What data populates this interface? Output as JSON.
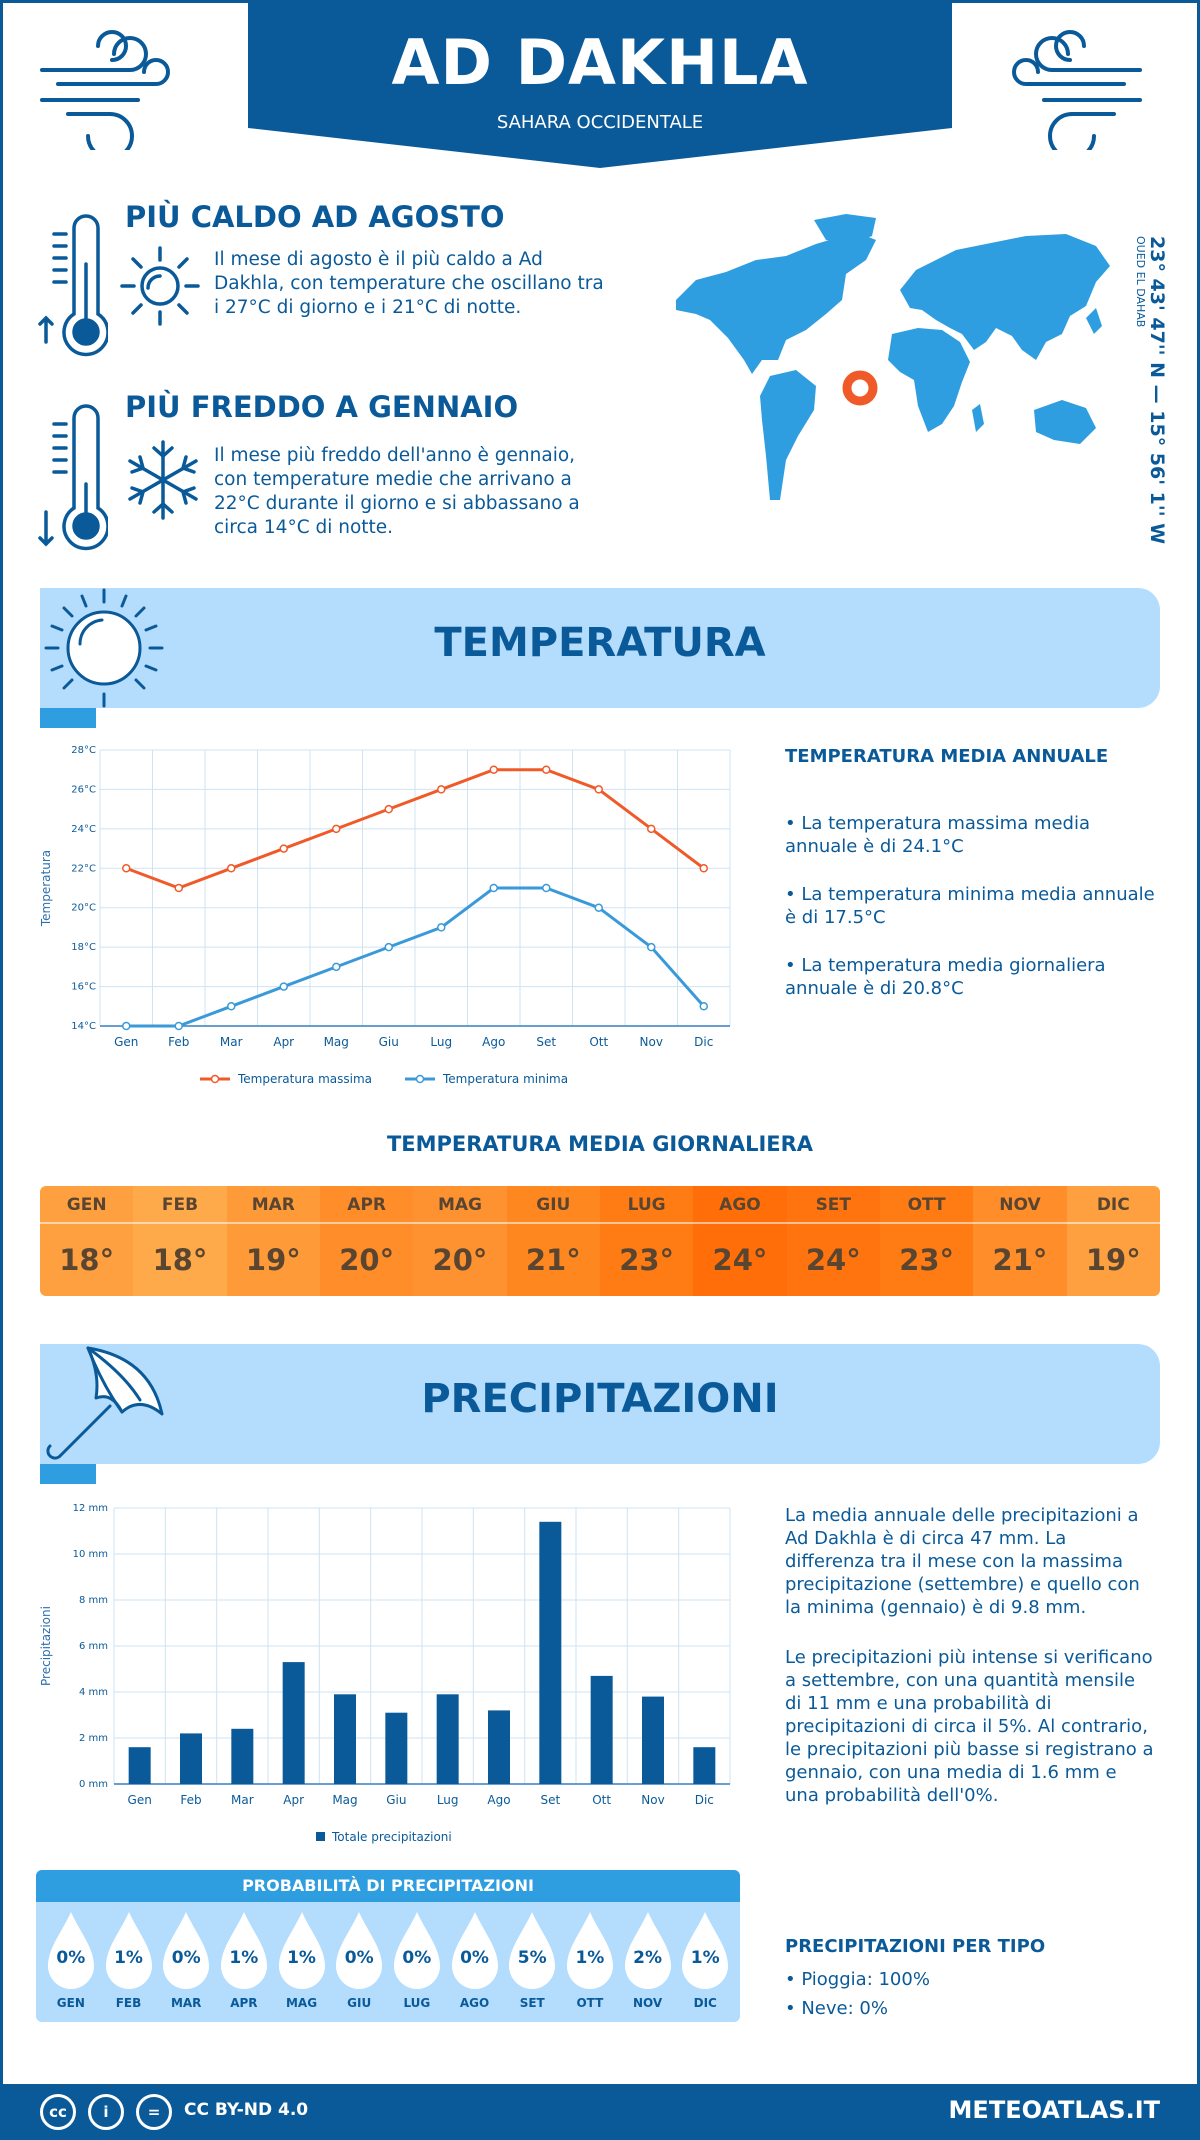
{
  "header": {
    "title": "AD DAKHLA",
    "subtitle": "SAHARA OCCIDENTALE"
  },
  "hot": {
    "title": "PIÙ CALDO AD AGOSTO",
    "text": "Il mese di agosto è il più caldo a Ad Dakhla, con temperature che oscillano tra i 27°C di giorno e i 21°C di notte."
  },
  "cold": {
    "title": "PIÙ FREDDO A GENNAIO",
    "text": "Il mese più freddo dell'anno è gennaio, con temperature medie che arrivano a 22°C durante il giorno e si abbassano a circa 14°C di notte."
  },
  "location": {
    "coords": "23° 43' 47'' N — 15° 56' 1'' W",
    "region": "OUED EL DAHAB"
  },
  "temp_section": {
    "title": "TEMPERATURA",
    "side_title": "TEMPERATURA MEDIA ANNUALE",
    "bullets": [
      "• La temperatura massima media annuale è di 24.1°C",
      "• La temperatura minima media annuale è di 17.5°C",
      "• La temperatura media giornaliera annuale è di 20.8°C"
    ]
  },
  "daily": {
    "title": "TEMPERATURA MEDIA GIORNALIERA",
    "months": [
      "GEN",
      "FEB",
      "MAR",
      "APR",
      "MAG",
      "GIU",
      "LUG",
      "AGO",
      "SET",
      "OTT",
      "NOV",
      "DIC"
    ],
    "values": [
      "18°",
      "18°",
      "19°",
      "20°",
      "20°",
      "21°",
      "23°",
      "24°",
      "24°",
      "23°",
      "21°",
      "19°"
    ],
    "colors": [
      "#ffa040",
      "#ffaa4a",
      "#ff9a38",
      "#ff8e2a",
      "#ff9230",
      "#ff8720",
      "#ff7c14",
      "#ff6e08",
      "#ff740e",
      "#ff7c14",
      "#ff8e2a",
      "#ffa040"
    ]
  },
  "precip_section": {
    "title": "PRECIPITAZIONI",
    "para1": "La media annuale delle precipitazioni a Ad Dakhla è di circa 47 mm. La differenza tra il mese con la massima precipitazione (settembre) e quello con la minima (gennaio) è di 9.8 mm.",
    "para2": "Le precipitazioni più intense si verificano a settembre, con una quantità mensile di 11 mm e una probabilità di precipitazioni di circa il 5%. Al contrario, le precipitazioni più basse si registrano a gennaio, con una media di 1.6 mm e una probabilità dell'0%."
  },
  "probability": {
    "title": "PROBABILITÀ DI PRECIPITAZIONI",
    "months": [
      "GEN",
      "FEB",
      "MAR",
      "APR",
      "MAG",
      "GIU",
      "LUG",
      "AGO",
      "SET",
      "OTT",
      "NOV",
      "DIC"
    ],
    "values": [
      "0%",
      "1%",
      "0%",
      "1%",
      "1%",
      "0%",
      "0%",
      "0%",
      "5%",
      "1%",
      "2%",
      "1%"
    ]
  },
  "precip_type": {
    "title": "PRECIPITAZIONI PER TIPO",
    "rain": "• Pioggia: 100%",
    "snow": "• Neve: 0%"
  },
  "footer": {
    "license": "CC BY-ND 4.0",
    "site": "METEOATLAS.IT"
  },
  "chart_data": [
    {
      "type": "line",
      "categories": [
        "Gen",
        "Feb",
        "Mar",
        "Apr",
        "Mag",
        "Giu",
        "Lug",
        "Ago",
        "Set",
        "Ott",
        "Nov",
        "Dic"
      ],
      "series": [
        {
          "name": "Temperatura massima",
          "values": [
            22,
            21,
            22,
            23,
            24,
            25,
            26,
            27,
            27,
            26,
            24,
            22
          ],
          "color": "#f05a28"
        },
        {
          "name": "Temperatura minima",
          "values": [
            14,
            14,
            15,
            16,
            17,
            18,
            19,
            21,
            21,
            20,
            18,
            15
          ],
          "color": "#3a9ad9"
        }
      ],
      "ylabel": "Temperatura",
      "ylim": [
        14,
        28
      ],
      "yticks": [
        "14°C",
        "16°C",
        "18°C",
        "20°C",
        "22°C",
        "24°C",
        "26°C",
        "28°C"
      ]
    },
    {
      "type": "bar",
      "categories": [
        "Gen",
        "Feb",
        "Mar",
        "Apr",
        "Mag",
        "Giu",
        "Lug",
        "Ago",
        "Set",
        "Ott",
        "Nov",
        "Dic"
      ],
      "series": [
        {
          "name": "Totale precipitazioni",
          "values": [
            1.6,
            2.2,
            2.4,
            5.3,
            3.9,
            3.1,
            3.9,
            3.2,
            11.4,
            4.7,
            3.8,
            1.6
          ],
          "color": "#0a5a99"
        }
      ],
      "ylabel": "Precipitazioni",
      "ylim": [
        0,
        12
      ],
      "yticks": [
        "0 mm",
        "2 mm",
        "4 mm",
        "6 mm",
        "8 mm",
        "10 mm",
        "12 mm"
      ]
    }
  ]
}
